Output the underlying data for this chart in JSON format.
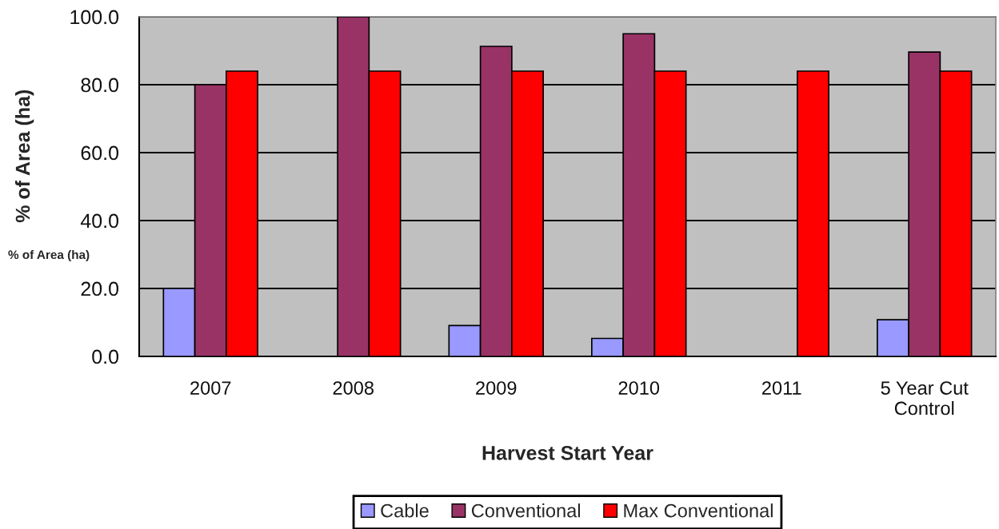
{
  "chart_data": {
    "type": "bar",
    "xlabel": "Harvest Start Year",
    "ylabel": "% of Area (ha)",
    "annotations": [
      "% of Area (ha)"
    ],
    "categories": [
      "2007",
      "2008",
      "2009",
      "2010",
      "2011",
      "5 Year Cut\nControl"
    ],
    "series": [
      {
        "name": "Cable",
        "color": "#9999ff",
        "values": [
          20.0,
          null,
          9.1,
          5.3,
          null,
          10.8
        ]
      },
      {
        "name": "Conventional",
        "color": "#993366",
        "values": [
          80.0,
          100.0,
          91.3,
          95.0,
          null,
          89.6
        ]
      },
      {
        "name": "Max Conventional",
        "color": "#ff0000",
        "values": [
          84.0,
          84.0,
          84.0,
          84.0,
          84.0,
          84.0
        ]
      }
    ],
    "ylim": [
      0,
      100
    ],
    "yticks": [
      {
        "value": 0,
        "label": "0.0"
      },
      {
        "value": 20,
        "label": "20.0"
      },
      {
        "value": 40,
        "label": "40.0"
      },
      {
        "value": 60,
        "label": "60.0"
      },
      {
        "value": 80,
        "label": "80.0"
      },
      {
        "value": 100,
        "label": "100.0"
      }
    ],
    "grid": "y",
    "legend": "bottom"
  }
}
